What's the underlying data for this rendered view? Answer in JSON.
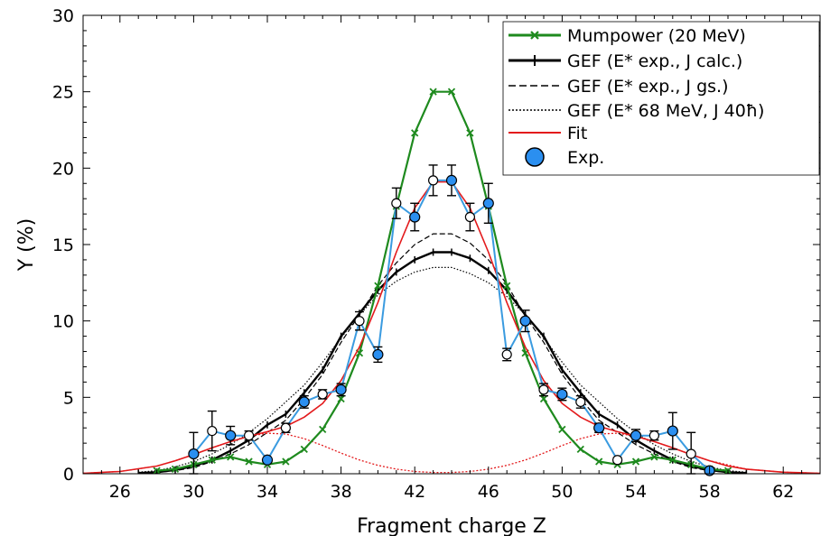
{
  "chart_data": {
    "type": "line",
    "xlabel": "Fragment charge Z",
    "ylabel": "Y (%)",
    "xlim": [
      24,
      64
    ],
    "ylim": [
      0,
      30
    ],
    "x_ticks": [
      "26",
      "30",
      "34",
      "38",
      "42",
      "46",
      "50",
      "54",
      "58",
      "62"
    ],
    "y_ticks": [
      "0",
      "5",
      "10",
      "15",
      "20",
      "25",
      "30"
    ],
    "legend_position": "top-right",
    "legend": [
      "Mumpower (20 MeV)",
      "GEF (E* exp., J calc.)",
      "GEF (E* exp., J gs.)",
      "GEF (E* 68 MeV, J 40ħ)",
      "Fit",
      "Exp."
    ],
    "colors": {
      "mumpower": "#1e8a1e",
      "gef": "#000000",
      "fit": "#e31a1c",
      "exp_fill": "#2b8ff0",
      "exp_line": "#3a9be0"
    },
    "series": [
      {
        "name": "Mumpower (20 MeV)",
        "style": "line-x-marker",
        "x": [
          28,
          29,
          30,
          31,
          32,
          33,
          34,
          35,
          36,
          37,
          38,
          39,
          40,
          41,
          42,
          43,
          44,
          45,
          46,
          47,
          48,
          49,
          50,
          51,
          52,
          53,
          54,
          55,
          56,
          57,
          58,
          59
        ],
        "y": [
          0.2,
          0.3,
          0.6,
          0.9,
          1.1,
          0.8,
          0.6,
          0.8,
          1.6,
          2.9,
          4.9,
          7.9,
          12.3,
          17.5,
          22.3,
          25.0,
          25.0,
          22.3,
          17.5,
          12.3,
          7.9,
          4.9,
          2.9,
          1.6,
          0.8,
          0.6,
          0.8,
          1.1,
          0.9,
          0.6,
          0.3,
          0.2
        ]
      },
      {
        "name": "GEF (E* exp., J calc.)",
        "style": "solid-thick-errorbars",
        "x": [
          27,
          28,
          29,
          30,
          31,
          32,
          33,
          34,
          35,
          36,
          37,
          38,
          39,
          40,
          41,
          42,
          43,
          44,
          45,
          46,
          47,
          48,
          49,
          50,
          51,
          52,
          53,
          54,
          55,
          56,
          57,
          58,
          59,
          60
        ],
        "y": [
          0.05,
          0.1,
          0.25,
          0.5,
          0.9,
          1.5,
          2.2,
          3.2,
          3.9,
          5.3,
          6.8,
          9.0,
          10.5,
          12.0,
          13.2,
          14.0,
          14.5,
          14.5,
          14.1,
          13.3,
          12.0,
          10.4,
          9.0,
          6.8,
          5.3,
          3.9,
          3.2,
          2.2,
          1.5,
          0.9,
          0.5,
          0.25,
          0.1,
          0.05
        ]
      },
      {
        "name": "GEF (E* exp., J gs.)",
        "style": "dashed",
        "x": [
          27,
          28,
          29,
          30,
          31,
          32,
          33,
          34,
          35,
          36,
          37,
          38,
          39,
          40,
          41,
          42,
          43,
          44,
          45,
          46,
          47,
          48,
          49,
          50,
          51,
          52,
          53,
          54,
          55,
          56,
          57,
          58,
          59,
          60
        ],
        "y": [
          0.04,
          0.08,
          0.2,
          0.4,
          0.8,
          1.3,
          1.9,
          2.7,
          3.5,
          4.9,
          6.5,
          8.6,
          10.4,
          12.3,
          13.8,
          15.0,
          15.7,
          15.7,
          15.1,
          14.0,
          12.4,
          10.3,
          8.6,
          6.5,
          4.9,
          3.5,
          2.7,
          1.9,
          1.3,
          0.8,
          0.4,
          0.2,
          0.08,
          0.04
        ]
      },
      {
        "name": "GEF (E* 68 MeV, J 40ħ)",
        "style": "dotted",
        "x": [
          27,
          28,
          29,
          30,
          31,
          32,
          33,
          34,
          35,
          36,
          37,
          38,
          39,
          40,
          41,
          42,
          43,
          44,
          45,
          46,
          47,
          48,
          49,
          50,
          51,
          52,
          53,
          54,
          55,
          56,
          57,
          58,
          59,
          60
        ],
        "y": [
          0.1,
          0.2,
          0.45,
          0.8,
          1.3,
          1.9,
          2.7,
          3.6,
          4.7,
          5.8,
          7.3,
          8.9,
          10.4,
          11.7,
          12.6,
          13.2,
          13.5,
          13.5,
          13.1,
          12.5,
          11.6,
          10.4,
          8.9,
          7.3,
          5.8,
          4.7,
          3.6,
          2.7,
          1.9,
          1.3,
          0.8,
          0.45,
          0.2,
          0.1
        ]
      },
      {
        "name": "Fit",
        "style": "solid-red",
        "x": [
          24,
          26,
          28,
          29,
          30,
          31,
          32,
          33,
          34,
          35,
          36,
          37,
          38,
          39,
          40,
          41,
          42,
          43,
          44,
          45,
          46,
          47,
          48,
          49,
          50,
          51,
          52,
          53,
          54,
          55,
          56,
          57,
          58,
          59,
          60,
          62,
          64
        ],
        "y": [
          0.03,
          0.15,
          0.5,
          0.85,
          1.25,
          1.7,
          2.1,
          2.45,
          2.75,
          3.1,
          3.7,
          4.6,
          6.1,
          8.3,
          11.2,
          14.5,
          17.4,
          19.1,
          19.1,
          17.4,
          14.5,
          11.2,
          8.3,
          6.1,
          4.6,
          3.7,
          3.1,
          2.75,
          2.45,
          2.1,
          1.7,
          1.25,
          0.85,
          0.5,
          0.3,
          0.1,
          0.03
        ]
      },
      {
        "name": "",
        "style": "dotted-red",
        "x": [
          24,
          26,
          28,
          29,
          30,
          31,
          32,
          33,
          34,
          35,
          36,
          37,
          38,
          39,
          40,
          41,
          42,
          43,
          44,
          45,
          46,
          47,
          48,
          49,
          50,
          51,
          52,
          53,
          54,
          55,
          56,
          57,
          58,
          60,
          62,
          64
        ],
        "y": [
          0.03,
          0.15,
          0.5,
          0.85,
          1.25,
          1.7,
          2.1,
          2.45,
          2.65,
          2.6,
          2.3,
          1.85,
          1.35,
          0.9,
          0.55,
          0.3,
          0.15,
          0.08,
          0.08,
          0.15,
          0.3,
          0.55,
          0.9,
          1.35,
          1.85,
          2.3,
          2.6,
          2.65,
          2.45,
          2.1,
          1.7,
          1.25,
          0.85,
          0.3,
          0.1,
          0.03
        ]
      },
      {
        "name": "Exp.",
        "style": "markers-connected",
        "x": [
          30,
          31,
          32,
          33,
          34,
          35,
          36,
          37,
          38,
          39,
          40,
          41,
          42,
          43,
          44,
          45,
          46,
          47,
          48,
          49,
          50,
          51,
          52,
          53,
          54,
          55,
          56,
          57,
          58
        ],
        "y": [
          1.3,
          2.8,
          2.5,
          2.5,
          0.9,
          3.0,
          4.7,
          5.2,
          5.5,
          10.0,
          7.8,
          17.7,
          16.8,
          19.2,
          19.2,
          16.8,
          17.7,
          7.8,
          10.0,
          5.5,
          5.2,
          4.7,
          3.0,
          0.9,
          2.5,
          2.5,
          2.8,
          1.3,
          0.2
        ],
        "err": [
          1.4,
          1.3,
          0.6,
          0.3,
          0.15,
          0.3,
          0.4,
          0.3,
          0.4,
          0.6,
          0.5,
          1.0,
          0.9,
          1.0,
          1.0,
          0.9,
          1.3,
          0.4,
          0.7,
          0.4,
          0.4,
          0.4,
          0.3,
          0.15,
          0.4,
          0.3,
          1.2,
          1.4,
          0.2
        ],
        "filled": [
          true,
          false,
          true,
          false,
          true,
          false,
          true,
          false,
          true,
          false,
          true,
          false,
          true,
          false,
          true,
          false,
          true,
          false,
          true,
          false,
          true,
          false,
          true,
          false,
          true,
          false,
          true,
          false,
          true
        ]
      }
    ]
  }
}
